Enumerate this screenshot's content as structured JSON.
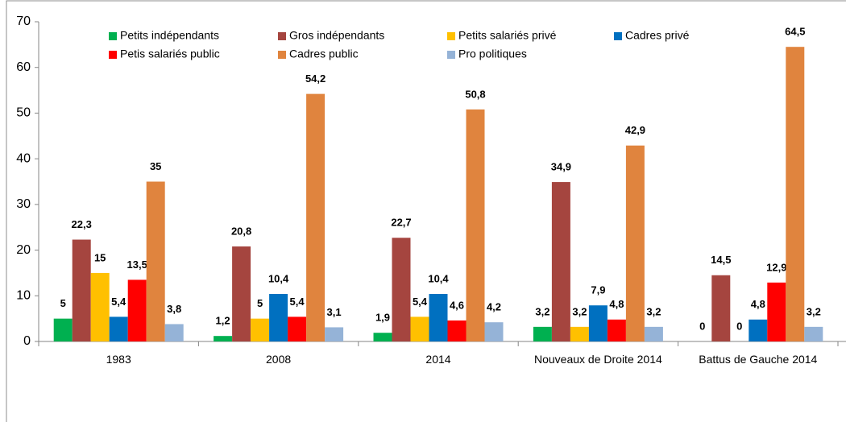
{
  "chart_data": {
    "type": "bar",
    "categories": [
      "1983",
      "2008",
      "2014",
      "Nouveaux de Droite 2014",
      "Battus de Gauche 2014"
    ],
    "series": [
      {
        "name": "Petits indépendants",
        "color": "#00b050",
        "values": [
          5,
          1.2,
          1.9,
          3.2,
          0
        ],
        "value_labels": [
          "5",
          "1,2",
          "1,9",
          "3,2",
          "0"
        ]
      },
      {
        "name": "Gros indépendants",
        "color": "#a5453f",
        "values": [
          22.3,
          20.8,
          22.7,
          34.9,
          14.5
        ],
        "value_labels": [
          "22,3",
          "20,8",
          "22,7",
          "34,9",
          "14,5"
        ]
      },
      {
        "name": "Petits salariés privé",
        "color": "#ffc000",
        "values": [
          15,
          5,
          5.4,
          3.2,
          0
        ],
        "value_labels": [
          "15",
          "5",
          "5,4",
          "3,2",
          "0"
        ]
      },
      {
        "name": "Cadres privé",
        "color": "#0070c0",
        "values": [
          5.4,
          10.4,
          10.4,
          7.9,
          4.8
        ],
        "value_labels": [
          "5,4",
          "10,4",
          "10,4",
          "7,9",
          "4,8"
        ]
      },
      {
        "name": "Petis salariés public",
        "color": "#ff0000",
        "values": [
          13.5,
          5.4,
          4.6,
          4.8,
          12.9
        ],
        "value_labels": [
          "13,5",
          "5,4",
          "4,6",
          "4,8",
          "12,9"
        ]
      },
      {
        "name": "Cadres public",
        "color": "#e0843e",
        "values": [
          35,
          54.2,
          50.8,
          42.9,
          64.5
        ],
        "value_labels": [
          "35",
          "54,2",
          "50,8",
          "42,9",
          "64,5"
        ]
      },
      {
        "name": "Pro politiques",
        "color": "#95b3d7",
        "values": [
          3.8,
          3.1,
          4.2,
          3.2,
          3.2
        ],
        "value_labels": [
          "3,8",
          "3,1",
          "4,2",
          "3,2",
          "3,2"
        ]
      }
    ],
    "ylim": [
      0,
      70
    ],
    "yticks": [
      0,
      10,
      20,
      30,
      40,
      50,
      60,
      70
    ],
    "grid": false,
    "legend": "top"
  }
}
